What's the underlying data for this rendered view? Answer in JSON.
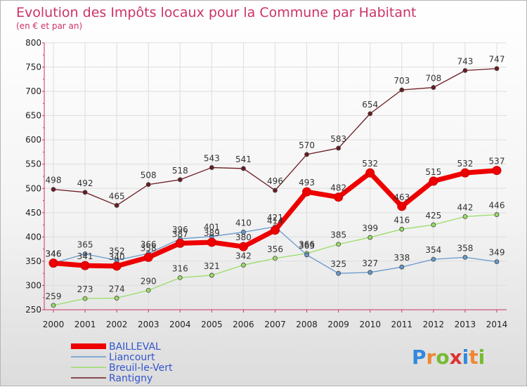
{
  "chart_data": {
    "type": "line",
    "title": "Evolution des Impôts locaux pour la Commune par Habitant",
    "subtitle": "(en € et par an)",
    "x": [
      "2000",
      "2001",
      "2002",
      "2003",
      "2004",
      "2005",
      "2006",
      "2007",
      "2008",
      "2009",
      "2010",
      "2011",
      "2012",
      "2013",
      "2014"
    ],
    "ylim": [
      250,
      800
    ],
    "yticks": [
      250,
      300,
      350,
      400,
      450,
      500,
      550,
      600,
      650,
      700,
      750,
      800
    ],
    "grid": true,
    "legend_position": "bottom-left",
    "series": [
      {
        "name": "Rantigny",
        "color": "#6b1a22",
        "values": [
          498,
          492,
          465,
          508,
          518,
          543,
          541,
          496,
          570,
          583,
          654,
          703,
          708,
          743,
          747
        ]
      },
      {
        "name": "Breuil-le-Vert",
        "color": "#99dd66",
        "values": [
          259,
          273,
          274,
          290,
          316,
          321,
          342,
          356,
          366,
          385,
          399,
          416,
          425,
          442,
          446
        ]
      },
      {
        "name": "Liancourt",
        "color": "#6699cc",
        "values": [
          346,
          365,
          352,
          366,
          396,
          401,
          410,
          421,
          363,
          325,
          327,
          338,
          354,
          358,
          349
        ]
      },
      {
        "name": "BAILLEVAL",
        "color": "#ee0000",
        "values": [
          346,
          341,
          340,
          358,
          387,
          389,
          380,
          414,
          493,
          482,
          532,
          463,
          515,
          532,
          537
        ]
      }
    ]
  },
  "brand": {
    "logo_text": "Proxiti"
  }
}
